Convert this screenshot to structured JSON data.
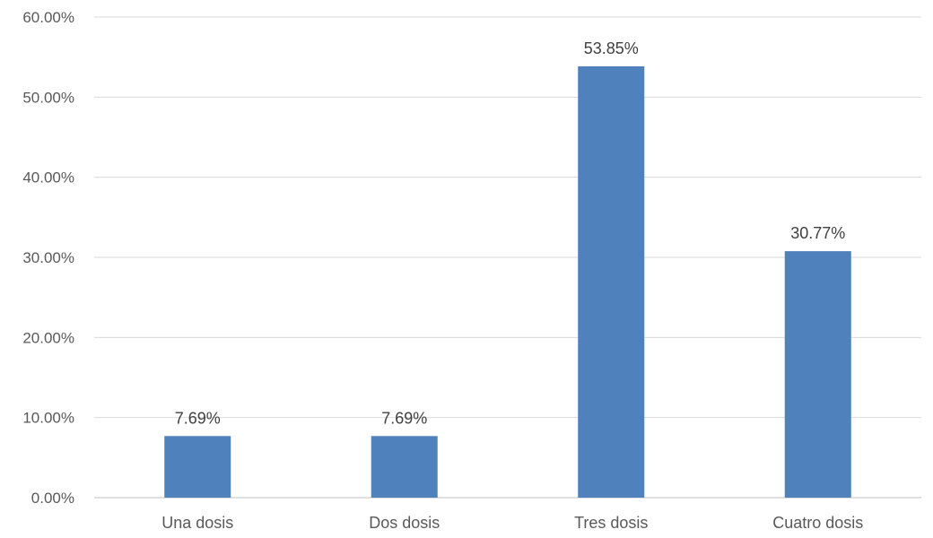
{
  "chart_data": {
    "type": "bar",
    "title": "",
    "xlabel": "",
    "ylabel": "",
    "categories": [
      "Una dosis",
      "Dos dosis",
      "Tres dosis",
      "Cuatro dosis"
    ],
    "values": [
      7.69,
      7.69,
      53.85,
      30.77
    ],
    "data_labels": [
      "7.69%",
      "7.69%",
      "53.85%",
      "30.77%"
    ],
    "ylim": [
      0,
      60
    ],
    "yticks": [
      0,
      10,
      20,
      30,
      40,
      50,
      60
    ],
    "ytick_labels": [
      "0.00%",
      "10.00%",
      "20.00%",
      "30.00%",
      "40.00%",
      "50.00%",
      "60.00%"
    ],
    "grid": true,
    "legend": "none",
    "bar_color": "#4f81bd"
  }
}
